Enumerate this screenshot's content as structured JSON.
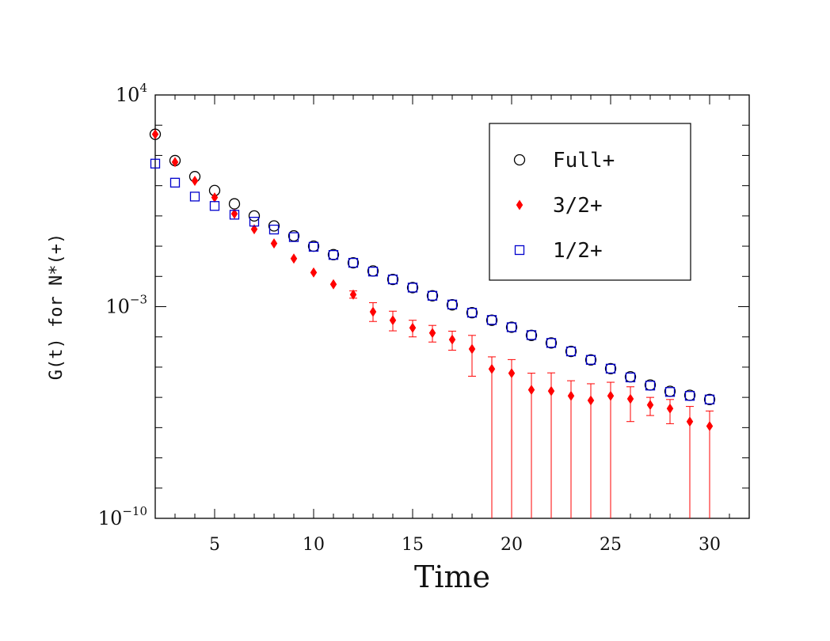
{
  "chart_data": {
    "type": "scatter",
    "xlabel": "Time",
    "ylabel": "G(t) for N*(+)",
    "xlim": [
      2,
      32
    ],
    "ylim_exponent": [
      -10,
      4
    ],
    "y_scale": "log",
    "x_ticks": [
      5,
      10,
      15,
      20,
      25,
      30
    ],
    "y_tick_labels": [
      {
        "base": "10",
        "exp": "4",
        "value_exponent": 4
      },
      {
        "base": "10",
        "exp": "−3",
        "value_exponent": -3
      },
      {
        "base": "10",
        "exp": "−10",
        "value_exponent": -10
      }
    ],
    "grid": false,
    "legend_position": "top-right",
    "series": [
      {
        "name": "Full+",
        "marker": "open-circle",
        "color": "#000000",
        "x": [
          2,
          3,
          4,
          5,
          6,
          7,
          8,
          9,
          10,
          11,
          12,
          13,
          14,
          15,
          16,
          17,
          18,
          19,
          20,
          21,
          22,
          23,
          24,
          25,
          26,
          27,
          28,
          29,
          30
        ],
        "log10_y": [
          2.7,
          1.83,
          1.3,
          0.84,
          0.4,
          0.0,
          -0.33,
          -0.66,
          -1.0,
          -1.28,
          -1.55,
          -1.82,
          -2.1,
          -2.37,
          -2.64,
          -2.94,
          -3.2,
          -3.45,
          -3.68,
          -3.95,
          -4.2,
          -4.48,
          -4.76,
          -5.05,
          -5.32,
          -5.59,
          -5.8,
          -5.93,
          -6.07
        ]
      },
      {
        "name": "3/2+",
        "marker": "filled-diamond",
        "color": "#ff0000",
        "x": [
          2,
          3,
          4,
          5,
          6,
          7,
          8,
          9,
          10,
          11,
          12,
          13,
          14,
          15,
          16,
          17,
          18,
          19,
          20,
          21,
          22,
          23,
          24,
          25,
          26,
          27,
          28,
          29,
          30
        ],
        "log10_y": [
          2.7,
          1.78,
          1.16,
          0.61,
          0.07,
          -0.44,
          -0.91,
          -1.41,
          -1.87,
          -2.26,
          -2.6,
          -3.17,
          -3.45,
          -3.7,
          -3.87,
          -4.09,
          -4.4,
          -5.06,
          -5.2,
          -5.75,
          -5.79,
          -5.95,
          -6.1,
          -5.95,
          -6.05,
          -6.25,
          -6.37,
          -6.8,
          -6.95
        ],
        "log10_err_lo": [
          0,
          0,
          0,
          0,
          0,
          0,
          0,
          0,
          0,
          0,
          0.12,
          0.32,
          0.35,
          0.3,
          0.3,
          0.35,
          0.9,
          5,
          5,
          5,
          5,
          5,
          5,
          5,
          0.75,
          0.35,
          0.5,
          5,
          5
        ],
        "log10_err_hi": [
          0,
          0,
          0,
          0,
          0,
          0,
          0,
          0,
          0,
          0,
          0.12,
          0.3,
          0.3,
          0.25,
          0.25,
          0.28,
          0.45,
          0.4,
          0.45,
          0.55,
          0.6,
          0.5,
          0.55,
          0.45,
          0.4,
          0.25,
          0.3,
          0.5,
          0.5
        ]
      },
      {
        "name": "1/2+",
        "marker": "open-square",
        "color": "#0000cc",
        "x": [
          2,
          3,
          4,
          5,
          6,
          7,
          8,
          9,
          10,
          11,
          12,
          13,
          14,
          15,
          16,
          17,
          18,
          19,
          20,
          21,
          22,
          23,
          24,
          25,
          26,
          27,
          28,
          29,
          30
        ],
        "log10_y": [
          1.73,
          1.1,
          0.64,
          0.33,
          0.04,
          -0.19,
          -0.45,
          -0.7,
          -1.02,
          -1.29,
          -1.55,
          -1.84,
          -2.1,
          -2.37,
          -2.64,
          -2.93,
          -3.2,
          -3.44,
          -3.68,
          -3.94,
          -4.2,
          -4.48,
          -4.76,
          -5.05,
          -5.34,
          -5.61,
          -5.82,
          -5.95,
          -6.07
        ]
      }
    ]
  }
}
